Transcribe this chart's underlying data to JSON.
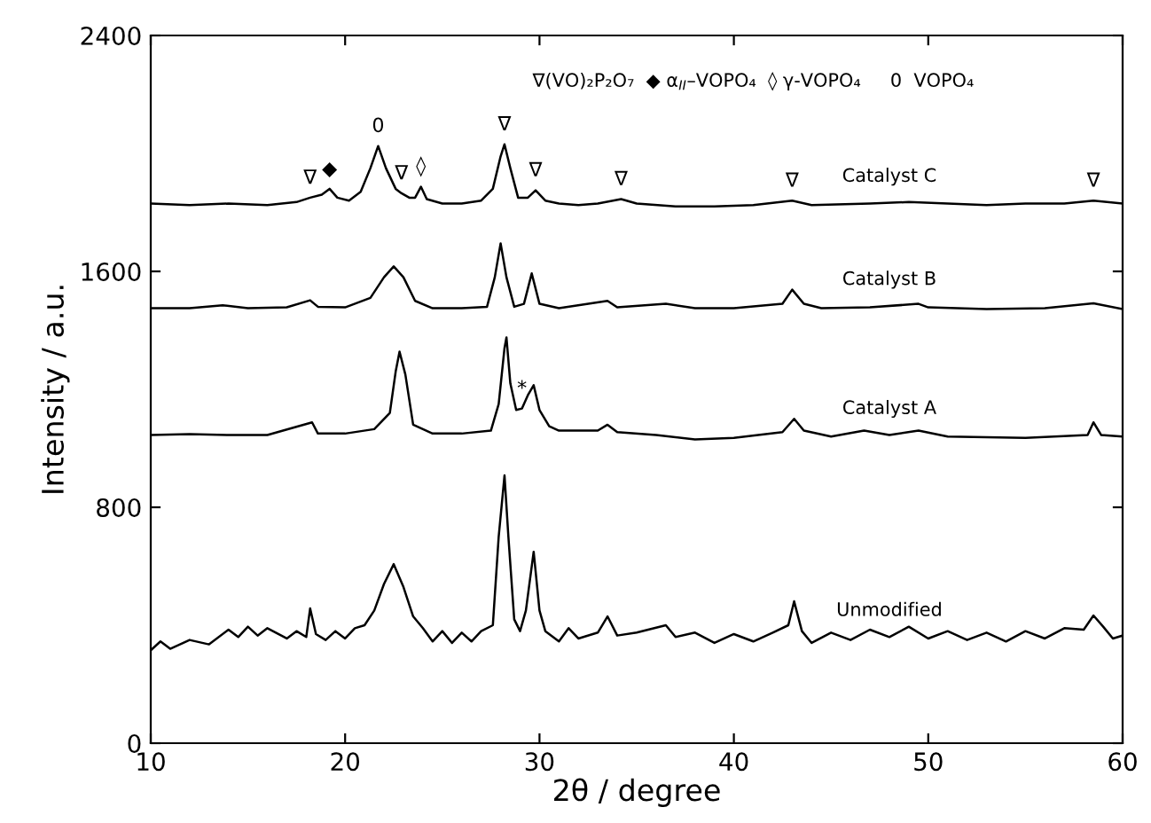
{
  "chart_data": {
    "type": "line",
    "xlabel": "2θ / degree",
    "ylabel": "Intensity / a.u.",
    "xlim": [
      10,
      60
    ],
    "xticks": [
      10,
      20,
      30,
      40,
      50,
      60
    ],
    "ylim": [
      0,
      2400
    ],
    "yticks": [
      0,
      800,
      1600,
      2400
    ],
    "grid": false,
    "legend": false,
    "marker": "none",
    "line_style": "solid",
    "series": [
      {
        "name": "Catalyst C",
        "color": "#000000",
        "x": [
          10,
          12,
          14,
          16,
          17.5,
          18.2,
          18.8,
          19.2,
          19.6,
          20.2,
          20.8,
          21.3,
          21.7,
          22.1,
          22.6,
          22.9,
          23.3,
          23.6,
          23.9,
          24.2,
          25,
          26,
          27,
          27.6,
          28.0,
          28.2,
          28.5,
          28.9,
          29.4,
          29.8,
          30.3,
          31,
          32,
          33,
          34.2,
          35,
          37,
          39,
          41,
          43,
          44,
          47,
          49,
          51,
          53,
          55,
          57,
          58.5,
          60
        ],
        "values": [
          1830,
          1825,
          1830,
          1825,
          1835,
          1850,
          1860,
          1880,
          1850,
          1840,
          1870,
          1950,
          2025,
          1950,
          1880,
          1865,
          1850,
          1850,
          1887,
          1845,
          1830,
          1830,
          1840,
          1880,
          1990,
          2031,
          1950,
          1850,
          1850,
          1875,
          1840,
          1830,
          1825,
          1830,
          1845,
          1830,
          1820,
          1820,
          1825,
          1840,
          1825,
          1830,
          1835,
          1830,
          1825,
          1830,
          1830,
          1840,
          1830
        ]
      },
      {
        "name": "Catalyst B",
        "color": "#000000",
        "x": [
          10,
          12,
          13.7,
          15,
          17,
          18.2,
          18.6,
          20,
          21.3,
          22,
          22.5,
          23,
          23.6,
          24.5,
          26,
          27.3,
          27.7,
          28.0,
          28.3,
          28.7,
          29.2,
          29.6,
          30,
          31,
          33.5,
          34,
          36.5,
          38,
          40,
          42.5,
          43.0,
          43.6,
          44.5,
          47,
          49.5,
          50,
          53,
          56,
          58.5,
          60
        ],
        "values": [
          1475,
          1475,
          1485,
          1475,
          1478,
          1502,
          1480,
          1478,
          1510,
          1580,
          1617,
          1580,
          1500,
          1475,
          1475,
          1480,
          1580,
          1695,
          1580,
          1480,
          1490,
          1593,
          1490,
          1475,
          1500,
          1478,
          1490,
          1475,
          1475,
          1490,
          1538,
          1490,
          1475,
          1478,
          1490,
          1478,
          1472,
          1475,
          1492,
          1472
        ]
      },
      {
        "name": "Catalyst A",
        "color": "#000000",
        "x": [
          10,
          12,
          14,
          16,
          18.3,
          18.6,
          20,
          21.5,
          22.3,
          22.6,
          22.8,
          23.1,
          23.5,
          24.5,
          26,
          27.5,
          27.9,
          28.2,
          28.3,
          28.5,
          28.8,
          29.1,
          29.4,
          29.7,
          30.0,
          30.5,
          31,
          33,
          33.5,
          34,
          36,
          38,
          40,
          42.5,
          43.1,
          43.6,
          45,
          46.7,
          48,
          49.5,
          51,
          55,
          58.2,
          58.5,
          58.9,
          60
        ],
        "values": [
          1045,
          1048,
          1045,
          1045,
          1088,
          1050,
          1050,
          1065,
          1120,
          1260,
          1328,
          1250,
          1080,
          1050,
          1050,
          1060,
          1150,
          1340,
          1376,
          1220,
          1130,
          1135,
          1180,
          1214,
          1130,
          1075,
          1060,
          1060,
          1080,
          1055,
          1045,
          1030,
          1035,
          1055,
          1100,
          1060,
          1040,
          1060,
          1045,
          1060,
          1040,
          1035,
          1045,
          1088,
          1045,
          1040
        ]
      },
      {
        "name": "Unmodified",
        "color": "#000000",
        "x": [
          10,
          10.5,
          11,
          12,
          13,
          14,
          14.5,
          15,
          15.5,
          16,
          17,
          17.5,
          18.0,
          18.2,
          18.5,
          19,
          19.5,
          20,
          20.5,
          21,
          21.5,
          22,
          22.5,
          23,
          23.5,
          24,
          24.5,
          25,
          25.5,
          26,
          26.5,
          27,
          27.6,
          27.9,
          28.2,
          28.4,
          28.7,
          29.0,
          29.3,
          29.7,
          30.0,
          30.3,
          31,
          31.5,
          32,
          33,
          33.5,
          34,
          35,
          36.5,
          37,
          38,
          39,
          40,
          41,
          42,
          42.8,
          43.1,
          43.5,
          44,
          45,
          46,
          47,
          48,
          49,
          50,
          51,
          52,
          53,
          54,
          55,
          56,
          57,
          58,
          58.5,
          59,
          59.5,
          60
        ],
        "values": [
          315,
          345,
          320,
          350,
          335,
          385,
          360,
          395,
          365,
          390,
          355,
          380,
          360,
          457,
          370,
          350,
          380,
          355,
          390,
          400,
          450,
          540,
          607,
          530,
          430,
          390,
          345,
          380,
          340,
          375,
          345,
          380,
          400,
          700,
          908,
          700,
          420,
          380,
          450,
          649,
          450,
          380,
          345,
          390,
          355,
          375,
          430,
          365,
          375,
          400,
          360,
          375,
          340,
          370,
          345,
          375,
          400,
          481,
          380,
          340,
          375,
          350,
          385,
          360,
          395,
          355,
          380,
          350,
          375,
          345,
          380,
          355,
          390,
          385,
          433,
          395,
          355,
          365
        ]
      }
    ],
    "annotations": [
      "∇(VO)₂P₂O₇  ◆ α$_{II}$–VOPO₄  ◊ γ-VOPO₄     0  VOPO₄",
      {
        "text": "∇",
        "x": 18.2,
        "y": 1850
      },
      {
        "text": "◆",
        "x": 19.2,
        "y": 1880
      },
      {
        "text": "0",
        "x": 21.7,
        "y": 2025
      },
      {
        "text": "∇",
        "x": 22.9,
        "y": 1865
      },
      {
        "text": "◊",
        "x": 23.9,
        "y": 1887
      },
      {
        "text": "∇",
        "x": 28.2,
        "y": 2031
      },
      {
        "text": "∇",
        "x": 29.8,
        "y": 1875
      },
      {
        "text": "∇",
        "x": 34.2,
        "y": 1845
      },
      {
        "text": "∇",
        "x": 43,
        "y": 1840
      },
      {
        "text": "∇",
        "x": 58.5,
        "y": 1840
      },
      {
        "text": "*",
        "x": 29.1,
        "y": 1135
      }
    ]
  }
}
